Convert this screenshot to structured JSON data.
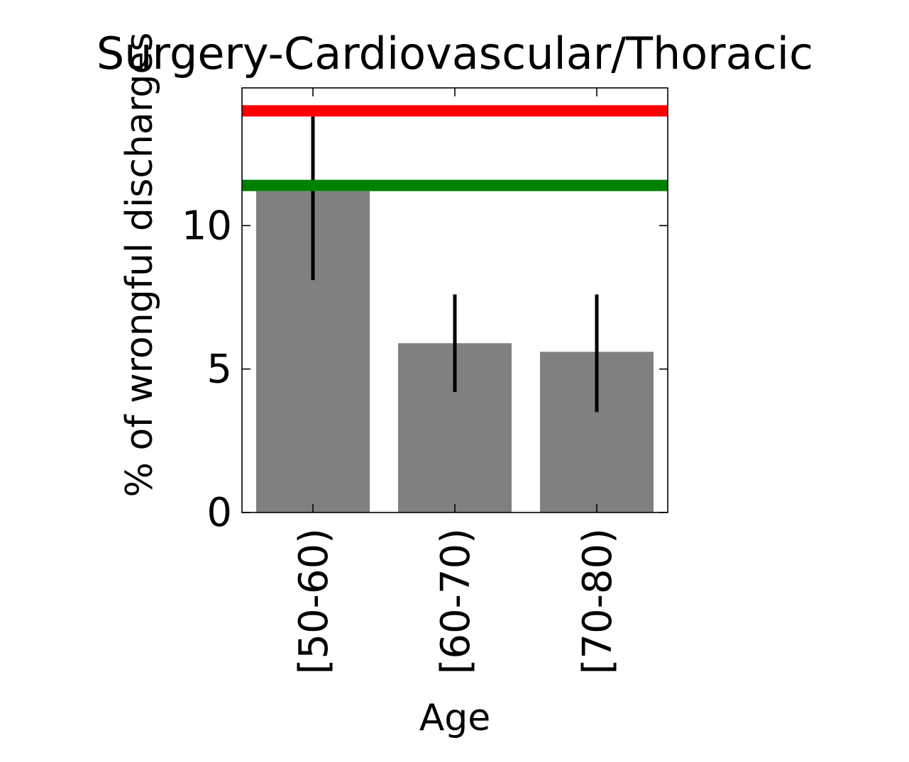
{
  "chart_data": {
    "type": "bar",
    "title": "Surgery-Cardiovascular/Thoracic",
    "xlabel": "Age",
    "ylabel": "% of wrongful discharges",
    "categories": [
      "[50-60)",
      "[60-70)",
      "[70-80)"
    ],
    "values": [
      11.2,
      5.9,
      5.6
    ],
    "error_low": [
      8.1,
      4.2,
      3.5
    ],
    "error_high": [
      13.8,
      7.6,
      7.6
    ],
    "bar_color": "#808080",
    "error_color": "#000000",
    "reference_lines": [
      {
        "value": 14.0,
        "color": "#ff0000"
      },
      {
        "value": 11.4,
        "color": "#008000"
      }
    ],
    "ylim": [
      0,
      14.8
    ],
    "yticks": [
      0,
      5,
      10
    ],
    "grid": false,
    "legend": "none"
  }
}
